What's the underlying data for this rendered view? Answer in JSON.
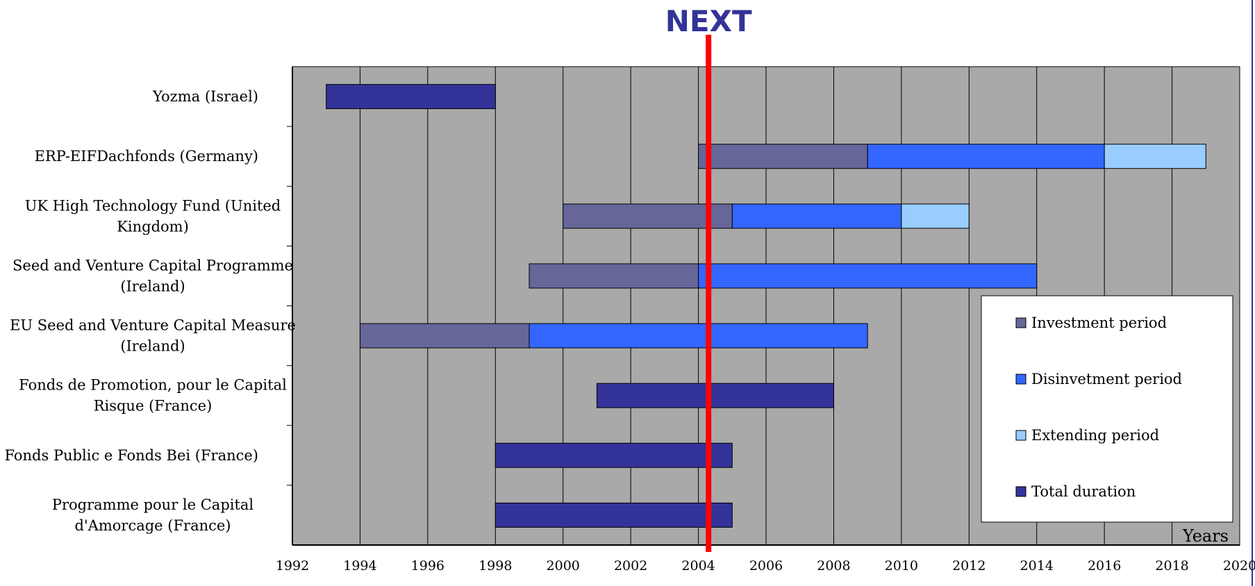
{
  "chart_data": {
    "type": "bar",
    "orientation": "horizontal",
    "stacked": true,
    "title": "NEXT",
    "xlabel": "Years",
    "ylabel": "",
    "xlim": [
      1992,
      2020
    ],
    "x_ticks": [
      1992,
      1994,
      1996,
      1998,
      2000,
      2002,
      2004,
      2006,
      2008,
      2010,
      2012,
      2014,
      2016,
      2018,
      2020
    ],
    "grid": true,
    "legend_position": "right",
    "marker_line": {
      "label": "NEXT",
      "x": 2004.3,
      "color": "#ff0000"
    },
    "categories": [
      {
        "label": "Yozma (Israel)",
        "lines": [
          "Yozma (Israel)"
        ]
      },
      {
        "label": "ERP-EIFDachfonds (Germany)",
        "lines": [
          "ERP-EIFDachfonds (Germany)"
        ]
      },
      {
        "label": "UK High Technology Fund (United Kingdom)",
        "lines": [
          "UK High Technology Fund (United",
          "Kingdom)"
        ]
      },
      {
        "label": "Seed and Venture Capital Programme (Ireland)",
        "lines": [
          "Seed and Venture Capital Programme",
          "(Ireland)"
        ]
      },
      {
        "label": "EU Seed and Venture Capital Measure (Ireland)",
        "lines": [
          "EU Seed and Venture Capital Measure",
          "(Ireland)"
        ]
      },
      {
        "label": "Fonds de Promotion, pour le Capital Risque (France)",
        "lines": [
          "Fonds de Promotion, pour le Capital",
          "Risque (France)"
        ]
      },
      {
        "label": "Fonds Public e Fonds Bei (France)",
        "lines": [
          "Fonds Public e Fonds Bei (France)"
        ]
      },
      {
        "label": "Programme pour le Capital d'Amorcage (France)",
        "lines": [
          "Programme pour le Capital",
          "d'Amorcage (France)"
        ]
      }
    ],
    "series": [
      {
        "name": "Investment period",
        "color": "#666699"
      },
      {
        "name": "Disinvetment period",
        "color": "#3366ff"
      },
      {
        "name": "Extending period",
        "color": "#99ccff"
      },
      {
        "name": "Total duration",
        "color": "#333399"
      }
    ],
    "bars": [
      {
        "category": "Yozma (Israel)",
        "segments": [
          {
            "series": "Total duration",
            "start": 1993,
            "end": 1998
          }
        ]
      },
      {
        "category": "ERP-EIFDachfonds (Germany)",
        "segments": [
          {
            "series": "Investment period",
            "start": 2004,
            "end": 2009
          },
          {
            "series": "Disinvetment period",
            "start": 2009,
            "end": 2016
          },
          {
            "series": "Extending period",
            "start": 2016,
            "end": 2019
          }
        ]
      },
      {
        "category": "UK High Technology Fund (United Kingdom)",
        "segments": [
          {
            "series": "Investment period",
            "start": 2000,
            "end": 2005
          },
          {
            "series": "Disinvetment period",
            "start": 2005,
            "end": 2010
          },
          {
            "series": "Extending period",
            "start": 2010,
            "end": 2012
          }
        ]
      },
      {
        "category": "Seed and Venture Capital Programme (Ireland)",
        "segments": [
          {
            "series": "Investment period",
            "start": 1999,
            "end": 2004
          },
          {
            "series": "Disinvetment period",
            "start": 2004,
            "end": 2014
          }
        ]
      },
      {
        "category": "EU Seed and Venture Capital Measure (Ireland)",
        "segments": [
          {
            "series": "Investment period",
            "start": 1994,
            "end": 1999
          },
          {
            "series": "Disinvetment period",
            "start": 1999,
            "end": 2009
          }
        ]
      },
      {
        "category": "Fonds de Promotion, pour le Capital Risque (France)",
        "segments": [
          {
            "series": "Total duration",
            "start": 2001,
            "end": 2008
          }
        ]
      },
      {
        "category": "Fonds Public e Fonds Bei (France)",
        "segments": [
          {
            "series": "Total duration",
            "start": 1998,
            "end": 2005
          }
        ]
      },
      {
        "category": "Programme pour le Capital d'Amorcage (France)",
        "segments": [
          {
            "series": "Total duration",
            "start": 1998,
            "end": 2005
          }
        ]
      }
    ]
  },
  "style": {
    "plot_background": "#a9a9a9",
    "grid_color": "#000000",
    "title_color": "#333399",
    "legend_background": "#ffffff"
  }
}
